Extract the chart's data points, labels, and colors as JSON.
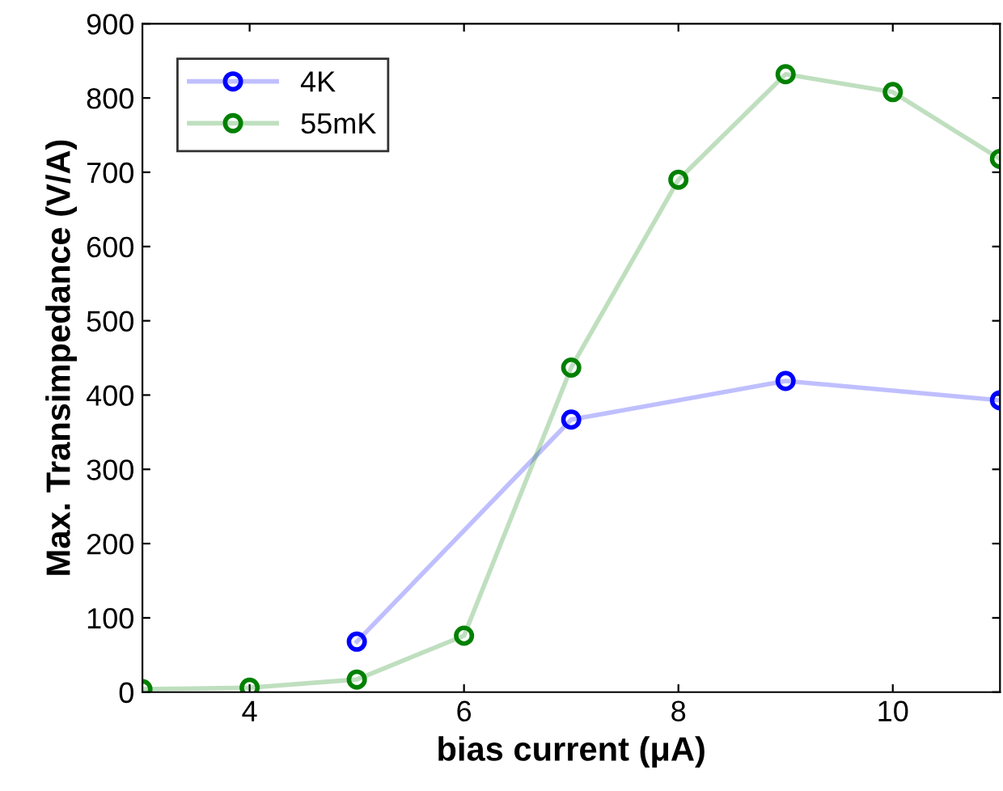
{
  "chart_data": {
    "type": "line",
    "xlabel": "bias current (μA)",
    "ylabel": "Max. Transimpedance (V/A)",
    "xlim": [
      3,
      11
    ],
    "xticks": [
      4,
      6,
      8,
      10
    ],
    "ylim": [
      0,
      900
    ],
    "yticks": [
      0,
      100,
      200,
      300,
      400,
      500,
      600,
      700,
      800,
      900
    ],
    "grid": false,
    "legend": "top left",
    "marker": "circle",
    "line_style": "solid",
    "series": [
      {
        "name": "4K",
        "color": "#0000ff",
        "x": [
          5,
          7,
          9,
          11
        ],
        "values": [
          68,
          367,
          419,
          393
        ]
      },
      {
        "name": "55mK",
        "color": "#008000",
        "x": [
          3,
          4,
          5,
          6,
          7,
          8,
          9,
          10,
          11
        ],
        "values": [
          4,
          6,
          17,
          76,
          437,
          690,
          832,
          808,
          718
        ]
      }
    ]
  }
}
